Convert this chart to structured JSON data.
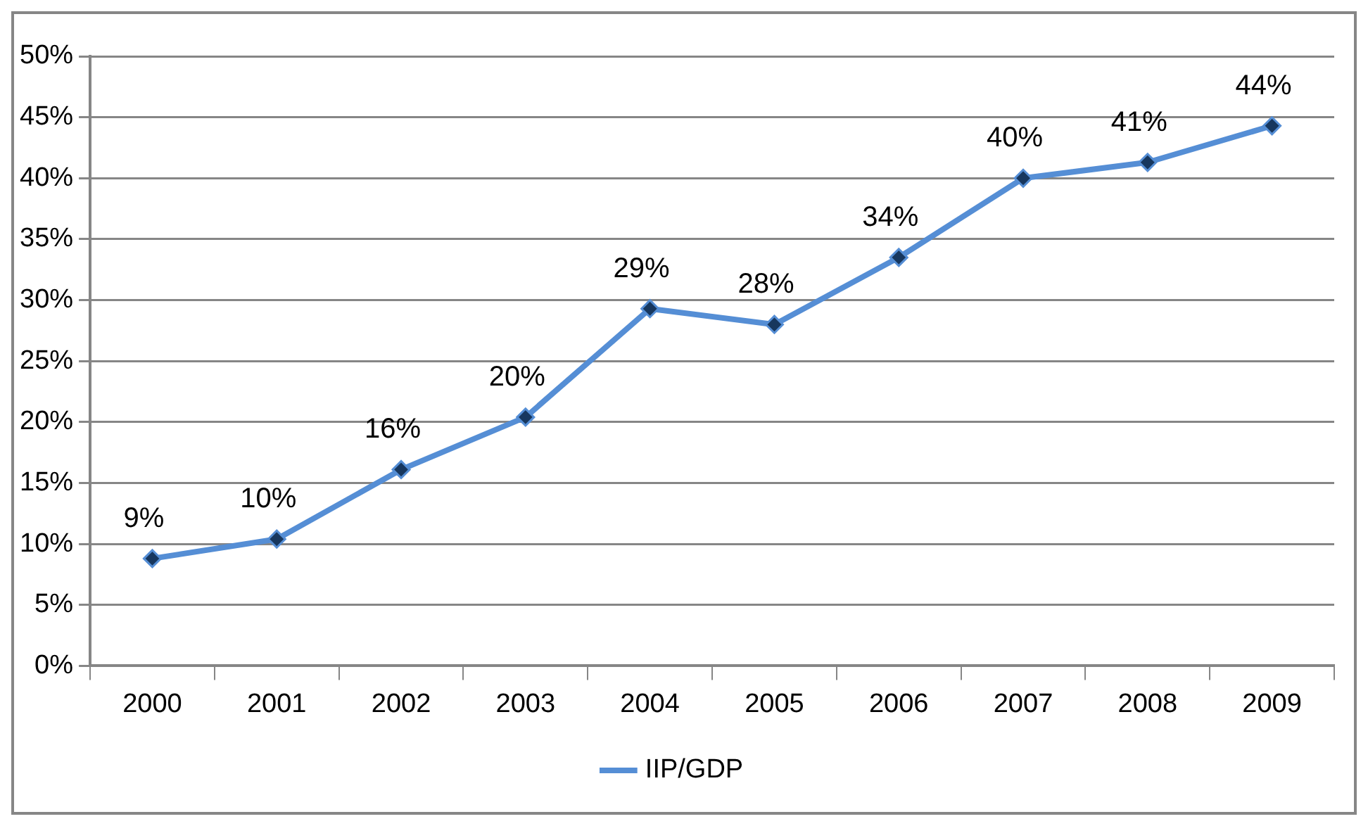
{
  "chart_data": {
    "type": "line",
    "categories": [
      "2000",
      "2001",
      "2002",
      "2003",
      "2004",
      "2005",
      "2006",
      "2007",
      "2008",
      "2009"
    ],
    "series": [
      {
        "name": "IIP/GDP",
        "color": "#558ed5",
        "values": [
          8.8,
          10.4,
          16.1,
          20.4,
          29.3,
          28.0,
          33.5,
          40.0,
          41.3,
          44.3
        ],
        "value_labels": [
          "9%",
          "10%",
          "16%",
          "20%",
          "29%",
          "28%",
          "34%",
          "40%",
          "41%",
          "44%"
        ]
      }
    ],
    "ylim": [
      0,
      50
    ],
    "yticks": [
      {
        "value": 0,
        "label": "0%"
      },
      {
        "value": 5,
        "label": "5%"
      },
      {
        "value": 10,
        "label": "10%"
      },
      {
        "value": 15,
        "label": "15%"
      },
      {
        "value": 20,
        "label": "20%"
      },
      {
        "value": 25,
        "label": "25%"
      },
      {
        "value": 30,
        "label": "30%"
      },
      {
        "value": 35,
        "label": "35%"
      },
      {
        "value": 40,
        "label": "40%"
      },
      {
        "value": 45,
        "label": "45%"
      },
      {
        "value": 50,
        "label": "50%"
      }
    ],
    "grid": "y",
    "legend": "bottom",
    "marker": "diamond",
    "line_style": "solid"
  }
}
